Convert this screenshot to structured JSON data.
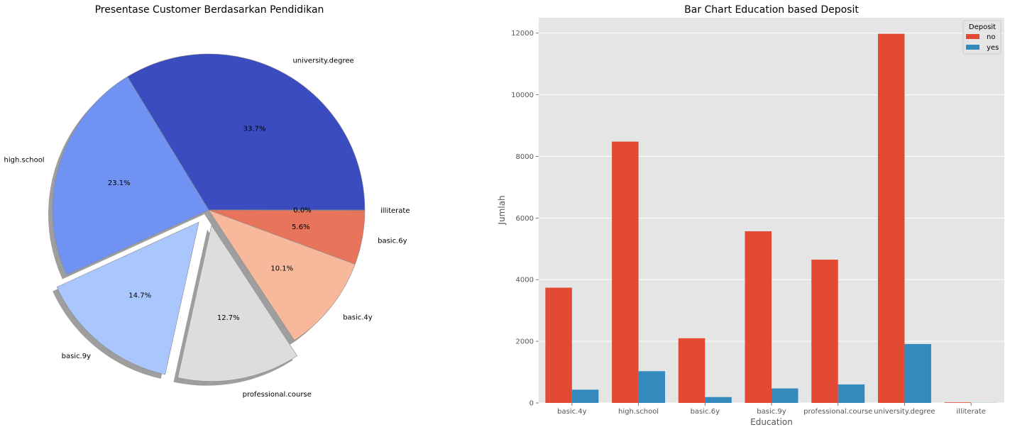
{
  "chart_data": [
    {
      "type": "pie",
      "title": "Presentase Customer Berdasarkan Pendidikan",
      "slices": [
        {
          "label": "university.degree",
          "value": 33.7,
          "pct_label": "33.7%",
          "color": "#3b4cc0",
          "explode": false
        },
        {
          "label": "high.school",
          "value": 23.1,
          "pct_label": "23.1%",
          "color": "#6f92f3",
          "explode": false
        },
        {
          "label": "basic.9y",
          "value": 14.7,
          "pct_label": "14.7%",
          "color": "#aac7fd",
          "explode": true
        },
        {
          "label": "professional.course",
          "value": 12.7,
          "pct_label": "12.7%",
          "color": "#dddddd",
          "explode": true
        },
        {
          "label": "basic.4y",
          "value": 10.1,
          "pct_label": "10.1%",
          "color": "#f7b89c",
          "explode": false
        },
        {
          "label": "basic.6y",
          "value": 5.6,
          "pct_label": "5.6%",
          "color": "#e7745b",
          "explode": false
        },
        {
          "label": "illiterate",
          "value": 0.05,
          "pct_label": "0.0%",
          "color": "#b40426",
          "explode": false
        }
      ]
    },
    {
      "type": "bar",
      "title": "Bar Chart Education based Deposit",
      "xlabel": "Education",
      "ylabel": "Jumlah",
      "ylim": [
        0,
        12500
      ],
      "yticks": [
        0,
        2000,
        4000,
        6000,
        8000,
        10000,
        12000
      ],
      "categories": [
        "basic.4y",
        "high.school",
        "basic.6y",
        "basic.9y",
        "professional.course",
        "university.degree",
        "illiterate"
      ],
      "legend_title": "Deposit",
      "legend_position": "top-right",
      "grid": true,
      "series": [
        {
          "name": "no",
          "color": "#e24a33",
          "values": [
            3740,
            8480,
            2100,
            5570,
            4650,
            11980,
            18
          ]
        },
        {
          "name": "yes",
          "color": "#348abd",
          "values": [
            430,
            1030,
            190,
            470,
            600,
            1910,
            4
          ]
        }
      ]
    }
  ]
}
